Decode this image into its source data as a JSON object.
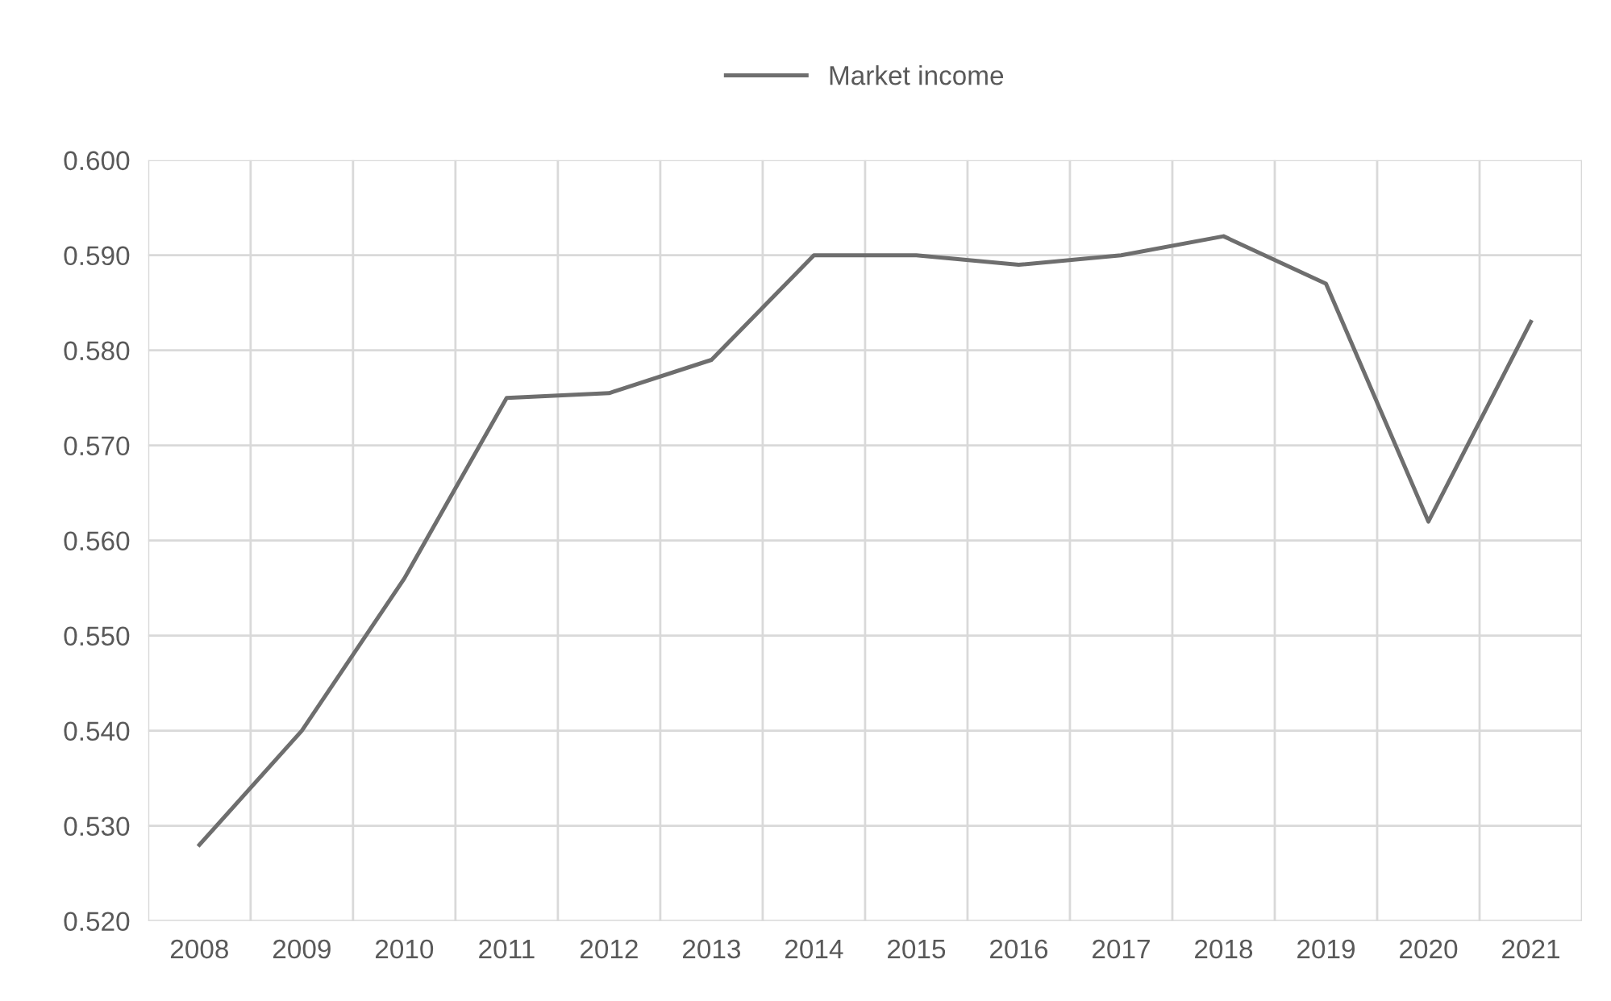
{
  "chart_data": {
    "type": "line",
    "categories": [
      "2008",
      "2009",
      "2010",
      "2011",
      "2012",
      "2013",
      "2014",
      "2015",
      "2016",
      "2017",
      "2018",
      "2019",
      "2020",
      "2021"
    ],
    "series": [
      {
        "name": "Market income",
        "color": "#6e6e6e",
        "values": [
          0.528,
          0.54,
          0.556,
          0.575,
          0.5755,
          0.579,
          0.59,
          0.59,
          0.589,
          0.59,
          0.592,
          0.587,
          0.562,
          0.583
        ]
      }
    ],
    "ylim": [
      0.52,
      0.6
    ],
    "yticks": [
      {
        "value": 0.52,
        "label": "0.520"
      },
      {
        "value": 0.53,
        "label": "0.530"
      },
      {
        "value": 0.54,
        "label": "0.540"
      },
      {
        "value": 0.55,
        "label": "0.550"
      },
      {
        "value": 0.56,
        "label": "0.560"
      },
      {
        "value": 0.57,
        "label": "0.570"
      },
      {
        "value": 0.58,
        "label": "0.580"
      },
      {
        "value": 0.59,
        "label": "0.590"
      },
      {
        "value": 0.6,
        "label": "0.600"
      }
    ],
    "grid": true,
    "legend": "top",
    "marker": "none",
    "line_style": "solid"
  }
}
